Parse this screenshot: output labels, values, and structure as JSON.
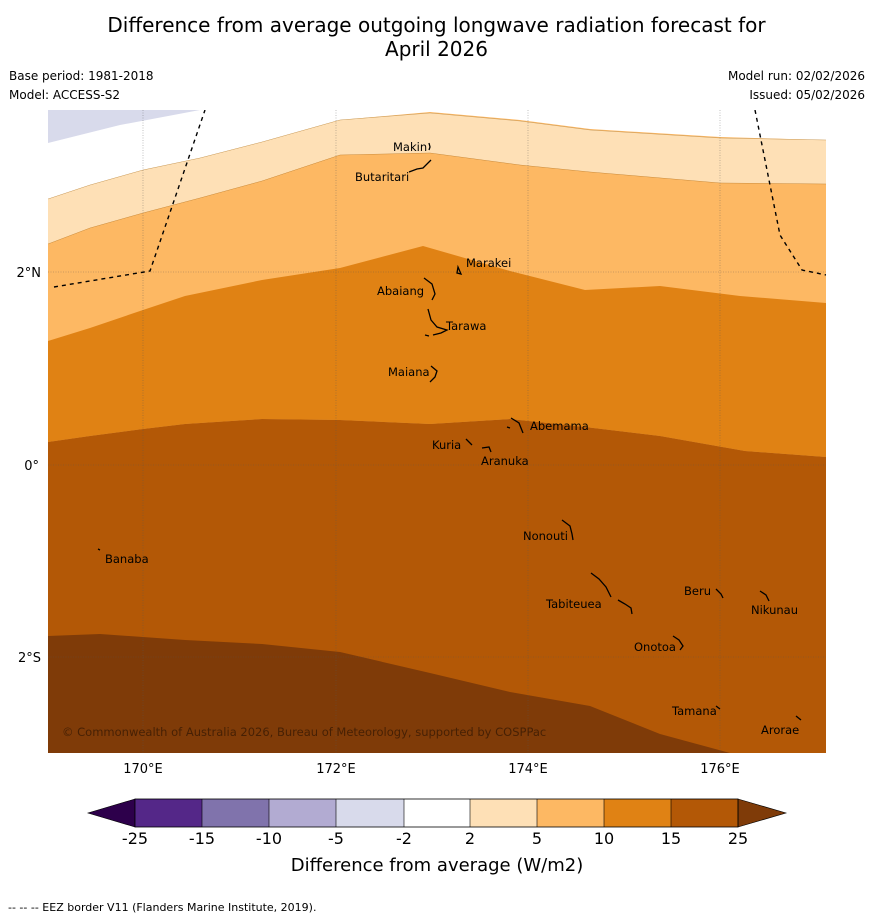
{
  "title_line1": "Difference from average outgoing longwave radiation forecast for",
  "title_line2": "April 2026",
  "base_period": "Base period: 1981-2018",
  "model": "Model: ACCESS-S2",
  "model_run": "Model run: 02/02/2026",
  "issued": "Issued: 05/02/2026",
  "copyright": "© Commonwealth of Australia 2026, Bureau of Meteorology, supported by COSPPac",
  "x_ticks": [
    "170°E",
    "172°E",
    "174°E",
    "176°E"
  ],
  "y_ticks": [
    "2°N",
    "0°",
    "2°S"
  ],
  "places": {
    "makin": "Makin",
    "butaritari": "Butaritari",
    "marakei": "Marakei",
    "abaiang": "Abaiang",
    "tarawa": "Tarawa",
    "maiana": "Maiana",
    "abemama": "Abemama",
    "kuria": "Kuria",
    "aranuka": "Aranuka",
    "banaba": "Banaba",
    "nonouti": "Nonouti",
    "tabiteuea": "Tabiteuea",
    "beru": "Beru",
    "nikunau": "Nikunau",
    "onotoa": "Onotoa",
    "tamana": "Tamana",
    "arorae": "Arorae"
  },
  "colorbar": {
    "labels": [
      "-25",
      "-15",
      "-10",
      "-5",
      "-2",
      "2",
      "5",
      "10",
      "15",
      "25"
    ],
    "title": "Difference from average (W/m2)",
    "colors": [
      "#2d004b",
      "#542788",
      "#8073ac",
      "#b2abd2",
      "#d8daeb",
      "#ffffff",
      "#fee0b6",
      "#fdb863",
      "#e08214",
      "#b35806",
      "#7f3b08"
    ]
  },
  "footer": "--  --  -- EEZ border V11 (Flanders Marine Institute, 2019)."
}
